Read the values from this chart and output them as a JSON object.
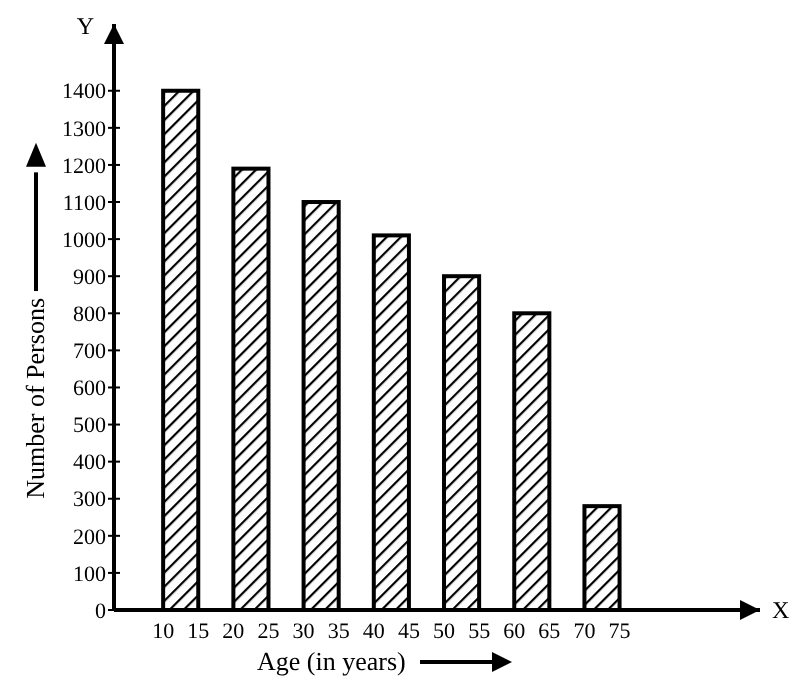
{
  "chart_data": {
    "type": "bar",
    "xlabel": "Age (in years)",
    "ylabel": "Number of Persons",
    "color": "#000000",
    "x": [
      12.5,
      22.5,
      32.5,
      42.5,
      52.5,
      62.5,
      72.5
    ],
    "values": [
      1400,
      1190,
      1100,
      1010,
      900,
      800,
      280
    ],
    "xlim": [
      3,
      95
    ],
    "xticks": [
      10,
      15,
      20,
      25,
      30,
      35,
      40,
      45,
      50,
      55,
      60,
      65,
      70,
      75
    ],
    "ylim": [
      0,
      1580
    ],
    "yticks": [
      0,
      100,
      200,
      300,
      400,
      500,
      600,
      700,
      800,
      900,
      1000,
      1100,
      1200,
      1300,
      1400
    ],
    "annotations": [
      "Y",
      "X"
    ],
    "grid": false
  }
}
